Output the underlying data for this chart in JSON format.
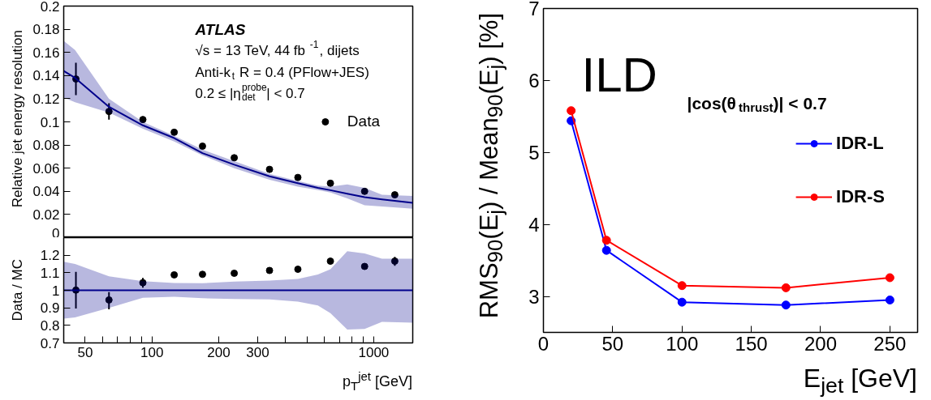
{
  "chart_data": [
    {
      "type": "scatter",
      "xlim": [
        40,
        1500
      ],
      "log": "x",
      "ylim": [
        0,
        0.2
      ],
      "yticks": [
        0,
        0.02,
        0.04,
        0.06,
        0.08,
        0.1,
        0.12,
        0.14,
        0.16,
        0.18,
        0.2
      ],
      "tick_labels": "y",
      "ylabel": "Relative jet energy resolution",
      "legend": "right",
      "marker": "circle",
      "grid": false,
      "annotations": [
        "ATLAS",
        "√s = 13 TeV, 44 fb$^{-1}$, dijets",
        "Anti-k$_{t}$ R = 0.4 (PFlow+JES)",
        "0.2 ≤ |η$^{probe}$$_{det}$| < 0.7"
      ],
      "series": [
        {
          "name": "Data",
          "type": "scatter",
          "color": "#000000",
          "x": [
            45.4,
            64,
            91,
            126,
            169,
            235,
            339,
            455,
            638,
            910,
            1245
          ],
          "values": [
            0.137,
            0.109,
            0.102,
            0.091,
            0.079,
            0.069,
            0.059,
            0.052,
            0.047,
            0.04,
            0.037
          ],
          "errors": [
            [
              0.123,
              0.151
            ],
            [
              0.102,
              0.116
            ],
            null,
            null,
            null,
            null,
            null,
            null,
            null,
            null,
            null
          ]
        },
        {
          "type": "line",
          "marker": "none",
          "color": "#00008b",
          "x": [
            40,
            45,
            64,
            91,
            126,
            169,
            235,
            339,
            455,
            560,
            638,
            760,
            910,
            1090,
            1500
          ],
          "values": [
            0.144,
            0.138,
            0.113,
            0.097,
            0.086,
            0.073,
            0.063,
            0.053,
            0.047,
            0.043,
            0.041,
            0.038,
            0.035,
            0.033,
            0.03
          ],
          "upper": [
            0.17,
            0.162,
            0.12,
            0.1,
            0.088,
            0.076,
            0.066,
            0.055,
            0.049,
            0.045,
            0.044,
            0.046,
            0.043,
            0.037,
            0.036
          ],
          "lower": [
            0.121,
            0.117,
            0.108,
            0.094,
            0.083,
            0.071,
            0.06,
            0.05,
            0.044,
            0.041,
            0.039,
            0.034,
            0.028,
            0.027,
            0.025
          ]
        }
      ]
    },
    {
      "type": "scatter",
      "xlim": [
        40,
        1500
      ],
      "log": "x",
      "ylim": [
        0.7,
        1.3
      ],
      "yticks": [
        0.7,
        0.8,
        0.9,
        1,
        1.1,
        1.2
      ],
      "xticks": [
        {
          "value": 40,
          "label": null
        },
        50,
        {
          "value": 60,
          "label": null
        },
        {
          "value": 70,
          "label": null
        },
        {
          "value": 80,
          "label": null
        },
        {
          "value": 90,
          "label": null
        },
        100,
        200,
        300,
        {
          "value": 400,
          "label": null
        },
        {
          "value": 500,
          "label": null
        },
        {
          "value": 600,
          "label": null
        },
        {
          "value": 700,
          "label": null
        },
        {
          "value": 800,
          "label": null
        },
        {
          "value": 900,
          "label": null
        },
        1000
      ],
      "ylabel": "Data / MC",
      "xlabel": "p$_{T}$$^{jet}$ [GeV]",
      "marker": "circle",
      "grid": false,
      "series": [
        {
          "type": "scatter",
          "color": "#000000",
          "x": [
            45.4,
            64,
            91,
            126,
            169,
            235,
            339,
            455,
            638,
            910,
            1245
          ],
          "values": [
            1.001,
            0.945,
            1.043,
            1.088,
            1.091,
            1.097,
            1.113,
            1.12,
            1.166,
            1.136,
            1.166
          ],
          "errors": [
            [
              0.896,
              1.105
            ],
            [
              0.891,
              0.99
            ],
            [
              1.015,
              1.07
            ],
            null,
            null,
            null,
            null,
            null,
            null,
            null,
            [
              1.14,
              1.19
            ]
          ]
        },
        {
          "type": "line",
          "marker": "none",
          "color": "#00008b",
          "x": [
            40,
            45,
            64,
            91,
            126,
            169,
            235,
            339,
            455,
            560,
            638,
            760,
            910,
            1090,
            1500
          ],
          "values": [
            1,
            1,
            1,
            1,
            1,
            1,
            1,
            1,
            1,
            1,
            1,
            1,
            1,
            1,
            1
          ],
          "upper": [
            1.163,
            1.15,
            1.08,
            1.052,
            1.041,
            1.04,
            1.05,
            1.055,
            1.065,
            1.09,
            1.12,
            1.223,
            1.21,
            1.18,
            1.18
          ],
          "lower": [
            0.838,
            0.845,
            0.9,
            0.957,
            0.963,
            0.955,
            0.95,
            0.948,
            0.935,
            0.914,
            0.87,
            0.776,
            0.78,
            0.82,
            0.815
          ]
        }
      ]
    },
    {
      "type": "line",
      "xlim": [
        0,
        270
      ],
      "ylim": [
        2.5,
        7
      ],
      "xticks": [
        0,
        50,
        100,
        150,
        200,
        250
      ],
      "yticks": [
        3,
        4,
        5,
        6,
        7
      ],
      "xlabel": "E$_{jet}$ [GeV]",
      "ylabel": "RMS$_{90}$(E$_{j}$) / Mean$_{90}$(E$_{j}$) [%]",
      "legend": "right",
      "marker": "circle",
      "grid": false,
      "annotations": [
        "ILD",
        "|cos(θ$_{thrust}$)| < 0.7"
      ],
      "series": [
        {
          "name": "IDR-L",
          "color": "#0000ff",
          "x": [
            20,
            45.5,
            100,
            175,
            250
          ],
          "values": [
            5.44,
            3.64,
            2.92,
            2.88,
            2.95
          ]
        },
        {
          "name": "IDR-S",
          "color": "#ff0000",
          "x": [
            20,
            45.5,
            100,
            175,
            250
          ],
          "values": [
            5.58,
            3.78,
            3.15,
            3.12,
            3.26
          ]
        }
      ]
    }
  ]
}
